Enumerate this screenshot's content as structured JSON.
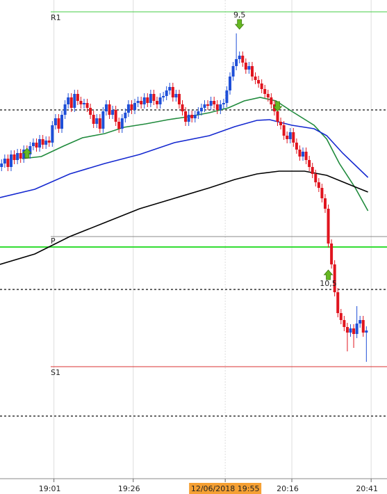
{
  "chart_data": {
    "type": "candlestick",
    "up_color": "#1e4fd8",
    "down_color": "#e0141e",
    "xlim": [
      0,
      122
    ],
    "ylim": [
      22,
      710
    ],
    "xticks": [
      {
        "value": 17,
        "label": "19:01"
      },
      {
        "value": 42,
        "label": "19:26"
      },
      {
        "value": 71,
        "label": "12/06/2018 19:55"
      },
      {
        "value": 92,
        "label": "20:16"
      },
      {
        "value": 117,
        "label": "20:41"
      }
    ],
    "highlight_tick": 2,
    "open": [
      470,
      475,
      482,
      470,
      488,
      480,
      490,
      482,
      495,
      488,
      500,
      505,
      498,
      510,
      502,
      508,
      505,
      530,
      540,
      525,
      545,
      560,
      570,
      555,
      575,
      565,
      560,
      562,
      555,
      545,
      532,
      540,
      525,
      550,
      560,
      545,
      552,
      535,
      525,
      540,
      548,
      560,
      552,
      562,
      565,
      560,
      570,
      562,
      575,
      565,
      560,
      570,
      572,
      580,
      585,
      570,
      575,
      560,
      550,
      535,
      545,
      540,
      545,
      550,
      555,
      560,
      558,
      565,
      560,
      552,
      560,
      562,
      580,
      600,
      615,
      625,
      630,
      620,
      610,
      615,
      600,
      595,
      590,
      582,
      575,
      570,
      560,
      550,
      535,
      530,
      515,
      510,
      520,
      505,
      495,
      485,
      492,
      480,
      470,
      460,
      448,
      440,
      425,
      410,
      360,
      330,
      290,
      260,
      250,
      240,
      232,
      238,
      230,
      245,
      250,
      232
    ],
    "high": [
      481,
      488,
      488,
      494,
      494,
      496,
      496,
      501,
      501,
      506,
      511,
      511,
      516,
      516,
      514,
      514,
      536,
      546,
      546,
      551,
      566,
      576,
      576,
      581,
      581,
      571,
      568,
      568,
      561,
      551,
      546,
      546,
      556,
      566,
      566,
      558,
      558,
      541,
      546,
      554,
      566,
      566,
      568,
      571,
      571,
      576,
      576,
      581,
      581,
      571,
      576,
      578,
      586,
      591,
      591,
      581,
      581,
      566,
      556,
      551,
      551,
      551,
      556,
      561,
      566,
      566,
      571,
      571,
      566,
      566,
      568,
      586,
      606,
      621,
      662,
      636,
      636,
      626,
      621,
      621,
      606,
      601,
      596,
      588,
      581,
      576,
      566,
      556,
      541,
      536,
      521,
      526,
      526,
      511,
      501,
      498,
      498,
      486,
      476,
      466,
      454,
      446,
      431,
      416,
      366,
      336,
      296,
      266,
      256,
      246,
      244,
      244,
      270,
      256,
      256,
      241
    ],
    "low": [
      464,
      469,
      464,
      464,
      474,
      474,
      476,
      476,
      482,
      482,
      494,
      492,
      492,
      496,
      496,
      499,
      499,
      524,
      519,
      519,
      539,
      554,
      549,
      549,
      559,
      554,
      554,
      549,
      539,
      526,
      526,
      519,
      519,
      544,
      539,
      539,
      529,
      519,
      519,
      534,
      542,
      546,
      546,
      556,
      554,
      554,
      556,
      556,
      559,
      554,
      554,
      564,
      566,
      574,
      564,
      564,
      554,
      544,
      529,
      529,
      534,
      534,
      539,
      544,
      549,
      552,
      552,
      554,
      546,
      546,
      554,
      556,
      574,
      594,
      609,
      619,
      614,
      604,
      604,
      594,
      589,
      584,
      576,
      569,
      564,
      554,
      544,
      529,
      524,
      509,
      504,
      504,
      499,
      489,
      479,
      479,
      474,
      464,
      454,
      442,
      434,
      419,
      404,
      354,
      324,
      284,
      254,
      244,
      234,
      205,
      226,
      210,
      224,
      239,
      226,
      190
    ],
    "close": [
      475,
      482,
      470,
      488,
      480,
      490,
      482,
      495,
      488,
      500,
      505,
      498,
      510,
      502,
      508,
      505,
      530,
      540,
      525,
      545,
      560,
      570,
      555,
      575,
      565,
      560,
      562,
      555,
      545,
      532,
      540,
      525,
      550,
      560,
      545,
      552,
      535,
      525,
      540,
      548,
      560,
      552,
      562,
      565,
      560,
      570,
      562,
      575,
      565,
      560,
      570,
      572,
      580,
      585,
      570,
      575,
      560,
      550,
      535,
      545,
      540,
      545,
      550,
      555,
      560,
      558,
      565,
      560,
      552,
      560,
      562,
      580,
      600,
      615,
      625,
      630,
      620,
      610,
      615,
      600,
      595,
      590,
      582,
      575,
      570,
      560,
      550,
      535,
      530,
      515,
      510,
      520,
      505,
      495,
      485,
      492,
      480,
      470,
      460,
      448,
      440,
      425,
      410,
      360,
      330,
      290,
      260,
      250,
      240,
      232,
      238,
      230,
      245,
      250,
      232,
      235
    ],
    "series": [
      {
        "color": "#1f8a3c",
        "x": [
          7,
          13,
          20,
          26,
          33,
          39,
          46,
          53,
          59,
          66,
          72,
          77,
          82,
          87,
          92,
          99,
          103,
          107,
          112,
          116
        ],
        "values": [
          482,
          485,
          500,
          512,
          518,
          527,
          532,
          538,
          542,
          548,
          555,
          565,
          570,
          565,
          550,
          530,
          510,
          475,
          440,
          407
        ]
      },
      {
        "color": "#1428d0",
        "x": [
          0,
          11,
          22,
          33,
          44,
          55,
          66,
          74,
          81,
          85,
          92,
          99,
          103,
          108,
          116
        ],
        "values": [
          426,
          438,
          460,
          475,
          488,
          505,
          515,
          528,
          537,
          538,
          530,
          525,
          515,
          490,
          455
        ]
      },
      {
        "color": "#000000",
        "x": [
          0,
          11,
          22,
          33,
          44,
          55,
          66,
          74,
          81,
          88,
          96,
          103,
          110,
          116
        ],
        "values": [
          330,
          345,
          370,
          390,
          410,
          425,
          440,
          452,
          460,
          464,
          464,
          458,
          445,
          434
        ]
      }
    ],
    "levels": [
      {
        "label": "R1",
        "value": 693,
        "color": "#44cc44",
        "width": 1
      },
      {
        "label": "P",
        "value": 355,
        "color": "#33dd33",
        "width": 2
      },
      {
        "label": "S1",
        "value": 183,
        "color": "#d83030",
        "width": 1
      }
    ],
    "pivot_band": 370,
    "dotted_levels": [
      552,
      294,
      112
    ],
    "signals": [
      {
        "direction": "up",
        "x": 8,
        "y": 490
      },
      {
        "direction": "down",
        "x": 75,
        "y": 675,
        "label": "9,5"
      },
      {
        "direction": "down",
        "x": 87,
        "y": 557
      },
      {
        "direction": "up",
        "x": 103,
        "y": 315,
        "label": "10,5"
      }
    ]
  }
}
